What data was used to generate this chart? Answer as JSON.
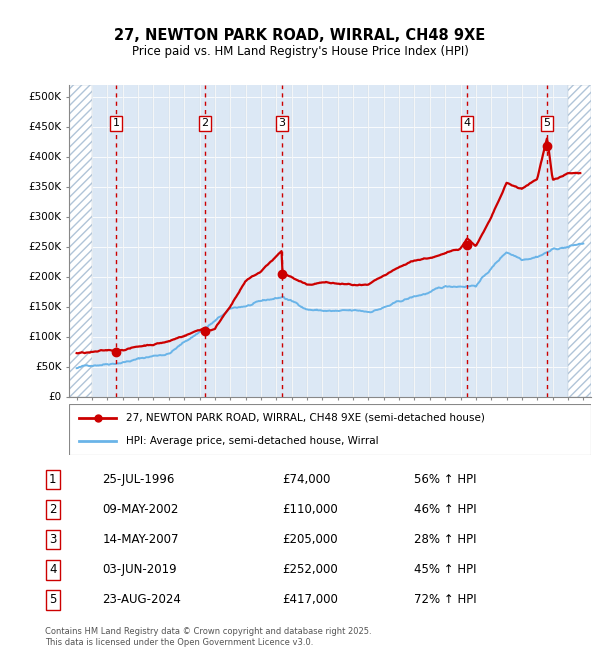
{
  "title1": "27, NEWTON PARK ROAD, WIRRAL, CH48 9XE",
  "title2": "Price paid vs. HM Land Registry's House Price Index (HPI)",
  "sale_dates_decimal": [
    1996.56,
    2002.36,
    2007.37,
    2019.42,
    2024.64
  ],
  "sale_prices": [
    74000,
    110000,
    205000,
    252000,
    417000
  ],
  "sale_labels": [
    "1",
    "2",
    "3",
    "4",
    "5"
  ],
  "sale_table": [
    [
      "1",
      "25-JUL-1996",
      "£74,000",
      "56% ↑ HPI"
    ],
    [
      "2",
      "09-MAY-2002",
      "£110,000",
      "46% ↑ HPI"
    ],
    [
      "3",
      "14-MAY-2007",
      "£205,000",
      "28% ↑ HPI"
    ],
    [
      "4",
      "03-JUN-2019",
      "£252,000",
      "45% ↑ HPI"
    ],
    [
      "5",
      "23-AUG-2024",
      "£417,000",
      "72% ↑ HPI"
    ]
  ],
  "hpi_line_color": "#6ab4e8",
  "price_line_color": "#cc0000",
  "dot_color": "#cc0000",
  "vline_color": "#cc0000",
  "bg_color": "#dce8f5",
  "grid_color": "#ffffff",
  "ylim": [
    0,
    520000
  ],
  "yticks": [
    0,
    50000,
    100000,
    150000,
    200000,
    250000,
    300000,
    350000,
    400000,
    450000,
    500000
  ],
  "ytick_labels": [
    "£0",
    "£50K",
    "£100K",
    "£150K",
    "£200K",
    "£250K",
    "£300K",
    "£350K",
    "£400K",
    "£450K",
    "£500K"
  ],
  "xlim_start": 1993.5,
  "xlim_end": 2027.5,
  "hatch_left_end": 1995.0,
  "hatch_right_start": 2026.0,
  "legend_line1": "27, NEWTON PARK ROAD, WIRRAL, CH48 9XE (semi-detached house)",
  "legend_line2": "HPI: Average price, semi-detached house, Wirral",
  "footer": "Contains HM Land Registry data © Crown copyright and database right 2025.\nThis data is licensed under the Open Government Licence v3.0."
}
